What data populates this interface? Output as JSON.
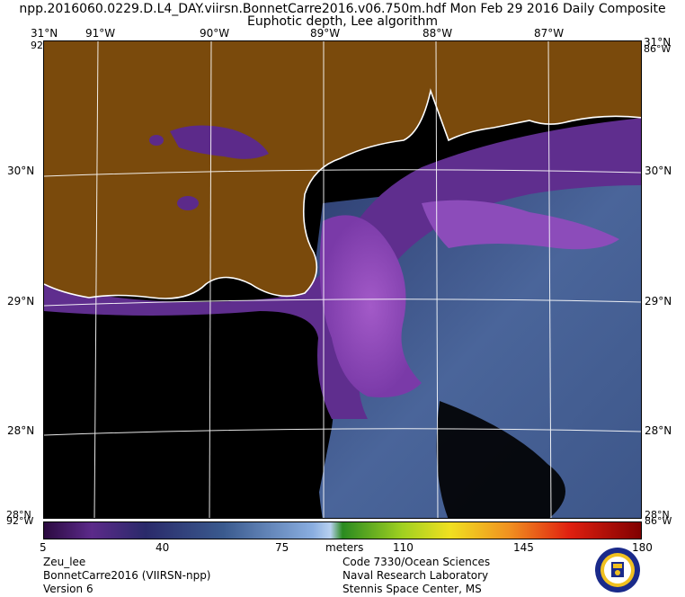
{
  "header": {
    "title_line1": "npp.2016060.0229.D.L4_DAY.viirsn.BonnetCarre2016.v06.750m.hdf   Mon Feb 29 2016 Daily Composite",
    "title_line2": "Euphotic depth, Lee algorithm"
  },
  "map": {
    "lon_labels": [
      "91°W",
      "90°W",
      "89°W",
      "88°W",
      "87°W"
    ],
    "lat_labels": [
      "30°N",
      "29°N",
      "28°N"
    ],
    "corner_top_left": "31°N",
    "corner_top_left_lon": "92°W",
    "corner_top_right": "31°N",
    "corner_top_right_lon": "86°W",
    "corner_bottom_left": "28°N",
    "corner_bottom_left_lon": "92°W",
    "corner_bottom_right": "28°N",
    "corner_bottom_right_lon": "86°W",
    "colors": {
      "land": "#7a4a0c",
      "no_data": "#000000",
      "coast": "#ffffff",
      "grid": "#ffffff",
      "purple": "#5c2a8a",
      "violet": "#8a4ab4",
      "blue_dark": "#2a3a68",
      "blue_mid": "#45608f"
    }
  },
  "colorbar": {
    "ticks": [
      "5",
      "40",
      "75",
      "110",
      "145",
      "180"
    ],
    "unit": "meters"
  },
  "footer": {
    "left": [
      "Zeu_lee",
      "BonnetCarre2016 (VIIRSN-npp)",
      "Version 6"
    ],
    "right": [
      "Code 7330/Ocean Sciences",
      "Naval Research Laboratory",
      "Stennis Space Center, MS"
    ]
  },
  "seal_icon": "nrl-seal-icon"
}
